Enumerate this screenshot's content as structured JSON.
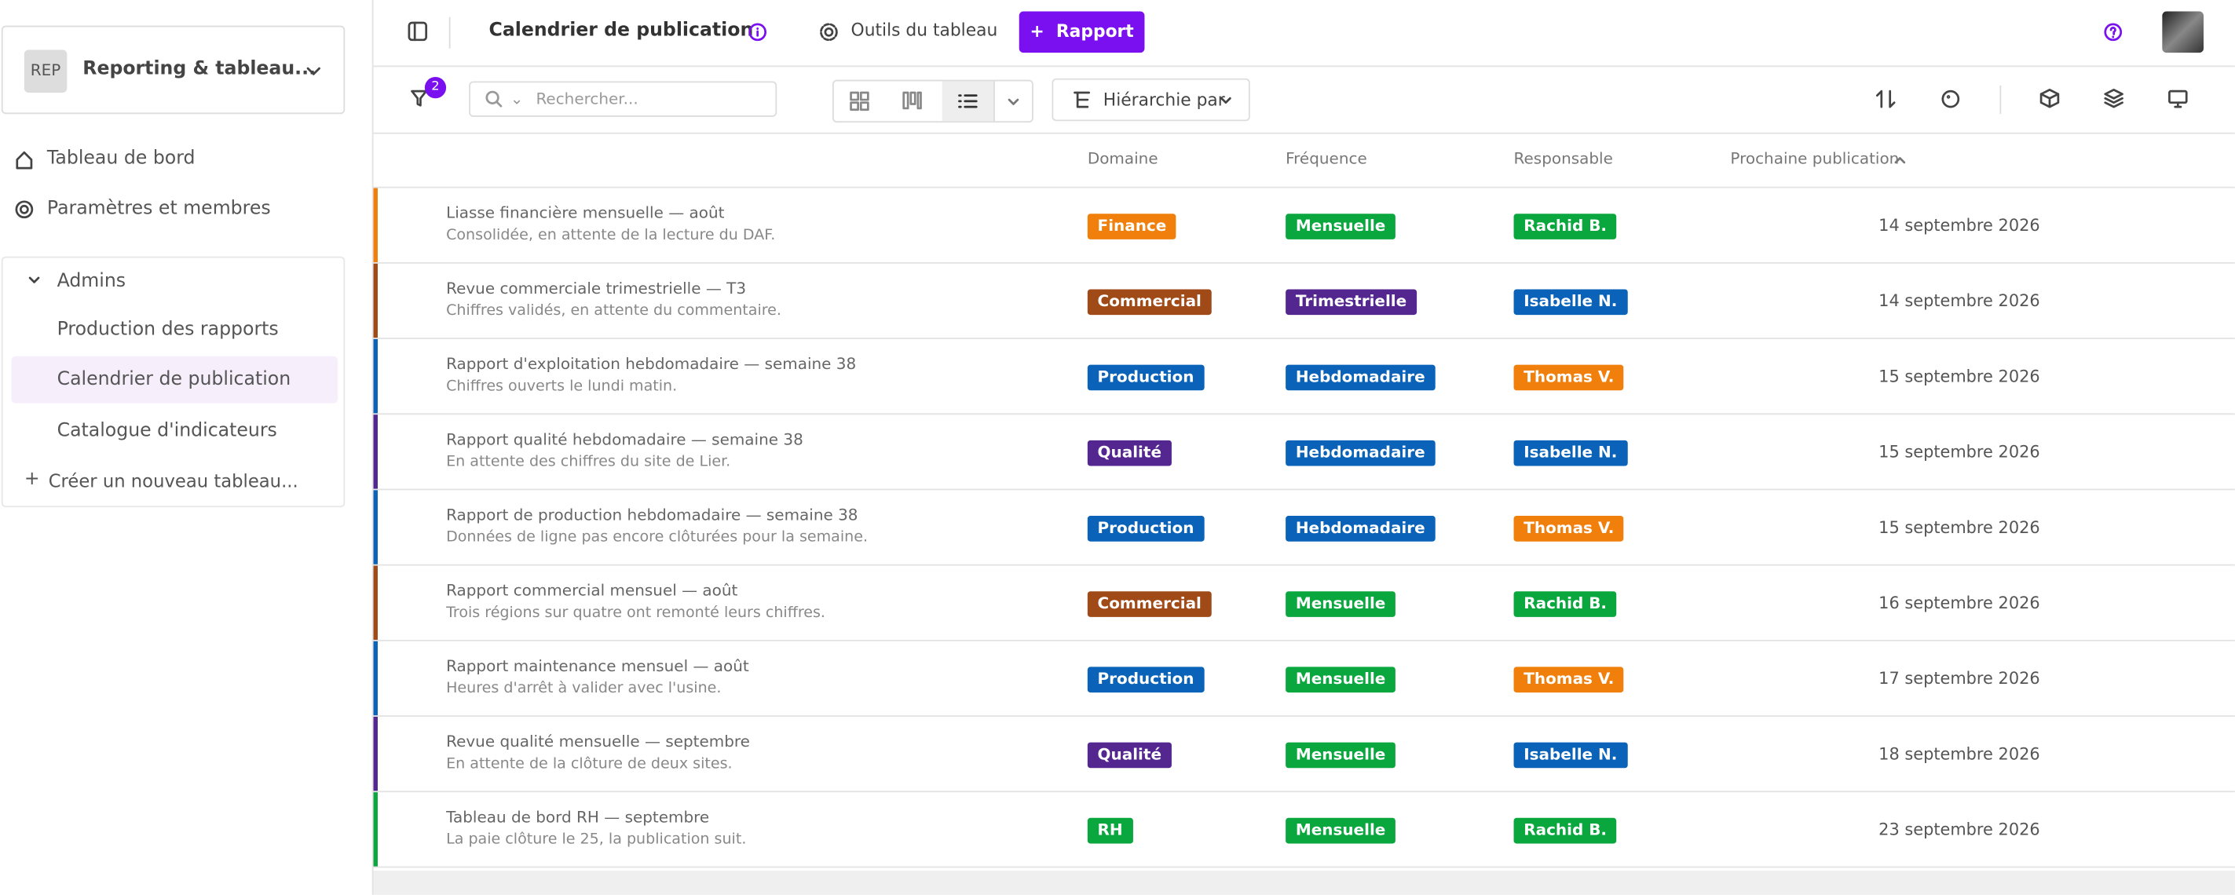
{
  "sidebar": {
    "workspace": {
      "initials": "REP",
      "name": "Reporting & tableau..."
    },
    "nav": [
      "Tableau de bord",
      "Paramètres et membres"
    ],
    "group": {
      "name": "Admins",
      "items": [
        "Production des rapports",
        "Calendrier de publication",
        "Catalogue d'indicateurs"
      ],
      "create": "Créer un nouveau tableau..."
    }
  },
  "header": {
    "title": "Calendrier de publication",
    "tools": "Outils du tableau",
    "button": "Rapport"
  },
  "toolbar": {
    "filter_count": "2",
    "search_placeholder": "Rechercher...",
    "hierarchy": "Hiérarchie par"
  },
  "table": {
    "columns": [
      "Domaine",
      "Fréquence",
      "Responsable",
      "Prochaine publication"
    ],
    "rows": [
      {
        "title": "Liasse financière mensuelle — août",
        "subtitle": "Consolidée, en attente de la lecture du DAF.",
        "accent": "#f07f0c",
        "domain": {
          "label": "Finance",
          "color": "#f07f0c"
        },
        "frequency": {
          "label": "Mensuelle",
          "color": "#0aa63e"
        },
        "owner": {
          "label": "Rachid B.",
          "color": "#0aa63e"
        },
        "date": "14 septembre 2026"
      },
      {
        "title": "Revue commerciale trimestrielle — T3",
        "subtitle": "Chiffres validés, en attente du commentaire.",
        "accent": "#a04a18",
        "domain": {
          "label": "Commercial",
          "color": "#a04a18"
        },
        "frequency": {
          "label": "Trimestrielle",
          "color": "#53278f"
        },
        "owner": {
          "label": "Isabelle N.",
          "color": "#0a63b8"
        },
        "date": "14 septembre 2026"
      },
      {
        "title": "Rapport d'exploitation hebdomadaire — semaine 38",
        "subtitle": "Chiffres ouverts le lundi matin.",
        "accent": "#0a63b8",
        "domain": {
          "label": "Production",
          "color": "#0a63b8"
        },
        "frequency": {
          "label": "Hebdomadaire",
          "color": "#0a63b8"
        },
        "owner": {
          "label": "Thomas V.",
          "color": "#f07f0c"
        },
        "date": "15 septembre 2026"
      },
      {
        "title": "Rapport qualité hebdomadaire — semaine 38",
        "subtitle": "En attente des chiffres du site de Lier.",
        "accent": "#53278f",
        "domain": {
          "label": "Qualité",
          "color": "#53278f"
        },
        "frequency": {
          "label": "Hebdomadaire",
          "color": "#0a63b8"
        },
        "owner": {
          "label": "Isabelle N.",
          "color": "#0a63b8"
        },
        "date": "15 septembre 2026"
      },
      {
        "title": "Rapport de production hebdomadaire — semaine 38",
        "subtitle": "Données de ligne pas encore clôturées pour la semaine.",
        "accent": "#0a63b8",
        "domain": {
          "label": "Production",
          "color": "#0a63b8"
        },
        "frequency": {
          "label": "Hebdomadaire",
          "color": "#0a63b8"
        },
        "owner": {
          "label": "Thomas V.",
          "color": "#f07f0c"
        },
        "date": "15 septembre 2026"
      },
      {
        "title": "Rapport commercial mensuel — août",
        "subtitle": "Trois régions sur quatre ont remonté leurs chiffres.",
        "accent": "#a04a18",
        "domain": {
          "label": "Commercial",
          "color": "#a04a18"
        },
        "frequency": {
          "label": "Mensuelle",
          "color": "#0aa63e"
        },
        "owner": {
          "label": "Rachid B.",
          "color": "#0aa63e"
        },
        "date": "16 septembre 2026"
      },
      {
        "title": "Rapport maintenance mensuel — août",
        "subtitle": "Heures d'arrêt à valider avec l'usine.",
        "accent": "#0a63b8",
        "domain": {
          "label": "Production",
          "color": "#0a63b8"
        },
        "frequency": {
          "label": "Mensuelle",
          "color": "#0aa63e"
        },
        "owner": {
          "label": "Thomas V.",
          "color": "#f07f0c"
        },
        "date": "17 septembre 2026"
      },
      {
        "title": "Revue qualité mensuelle — septembre",
        "subtitle": "En attente de la clôture de deux sites.",
        "accent": "#53278f",
        "domain": {
          "label": "Qualité",
          "color": "#53278f"
        },
        "frequency": {
          "label": "Mensuelle",
          "color": "#0aa63e"
        },
        "owner": {
          "label": "Isabelle N.",
          "color": "#0a63b8"
        },
        "date": "18 septembre 2026"
      },
      {
        "title": "Tableau de bord RH — septembre",
        "subtitle": "La paie clôture le 25, la publication suit.",
        "accent": "#0aa63e",
        "domain": {
          "label": "RH",
          "color": "#0aa63e"
        },
        "frequency": {
          "label": "Mensuelle",
          "color": "#0aa63e"
        },
        "owner": {
          "label": "Rachid B.",
          "color": "#0aa63e"
        },
        "date": "23 septembre 2026"
      }
    ]
  }
}
